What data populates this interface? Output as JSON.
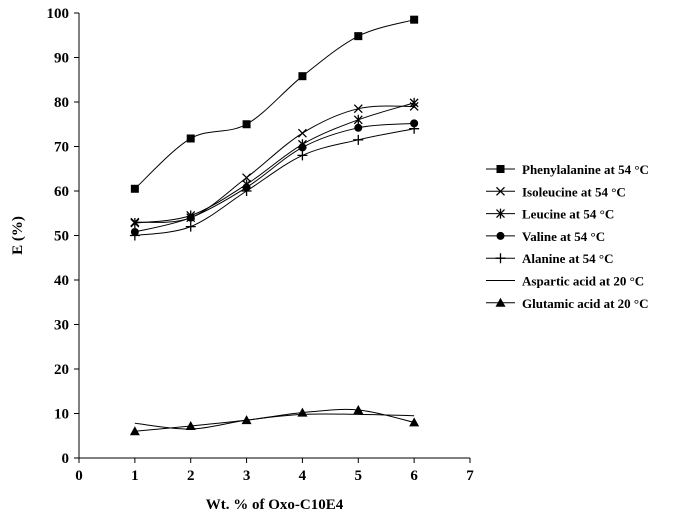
{
  "chart_data": {
    "type": "line",
    "title": "",
    "xlabel": "Wt. % of Oxo-C10E4",
    "ylabel": "E (%)",
    "xlim": [
      0,
      7
    ],
    "ylim": [
      0,
      100
    ],
    "xticks": [
      0,
      1,
      2,
      3,
      4,
      5,
      6,
      7
    ],
    "yticks": [
      0,
      10,
      20,
      30,
      40,
      50,
      60,
      70,
      80,
      90,
      100
    ],
    "grid": false,
    "legend_position": "right",
    "series": [
      {
        "name": "Phenylalanine at 54 °C",
        "marker": "square",
        "x": [
          1,
          2,
          3,
          4,
          5,
          6
        ],
        "y": [
          60.5,
          71.8,
          75,
          85.8,
          94.8,
          98.5
        ]
      },
      {
        "name": "Isoleucine at 54 °C",
        "marker": "x",
        "x": [
          1,
          2,
          3,
          4,
          5,
          6
        ],
        "y": [
          53,
          54,
          63,
          73,
          78.5,
          79
        ]
      },
      {
        "name": "Leucine at 54 °C",
        "marker": "asterisk",
        "x": [
          1,
          2,
          3,
          4,
          5,
          6
        ],
        "y": [
          52.8,
          54.5,
          61.5,
          70.5,
          76,
          79.8
        ]
      },
      {
        "name": "Valine at 54 °C",
        "marker": "circle",
        "x": [
          1,
          2,
          3,
          4,
          5,
          6
        ],
        "y": [
          50.8,
          54,
          60.8,
          69.8,
          74.2,
          75.2
        ]
      },
      {
        "name": "Alanine at 54 °C",
        "marker": "plus",
        "x": [
          1,
          2,
          3,
          4,
          5,
          6
        ],
        "y": [
          50,
          52,
          60,
          68,
          71.5,
          74
        ]
      },
      {
        "name": "Aspartic acid at 20 °C",
        "marker": "none",
        "x": [
          1,
          2,
          3,
          4,
          5,
          6
        ],
        "y": [
          7.8,
          6.5,
          8.5,
          9.8,
          9.8,
          9.5
        ]
      },
      {
        "name": "Glutamic acid at 20 °C",
        "marker": "triangle",
        "x": [
          1,
          2,
          3,
          4,
          5,
          6
        ],
        "y": [
          6,
          7.2,
          8.5,
          10.2,
          10.8,
          8
        ]
      }
    ]
  }
}
